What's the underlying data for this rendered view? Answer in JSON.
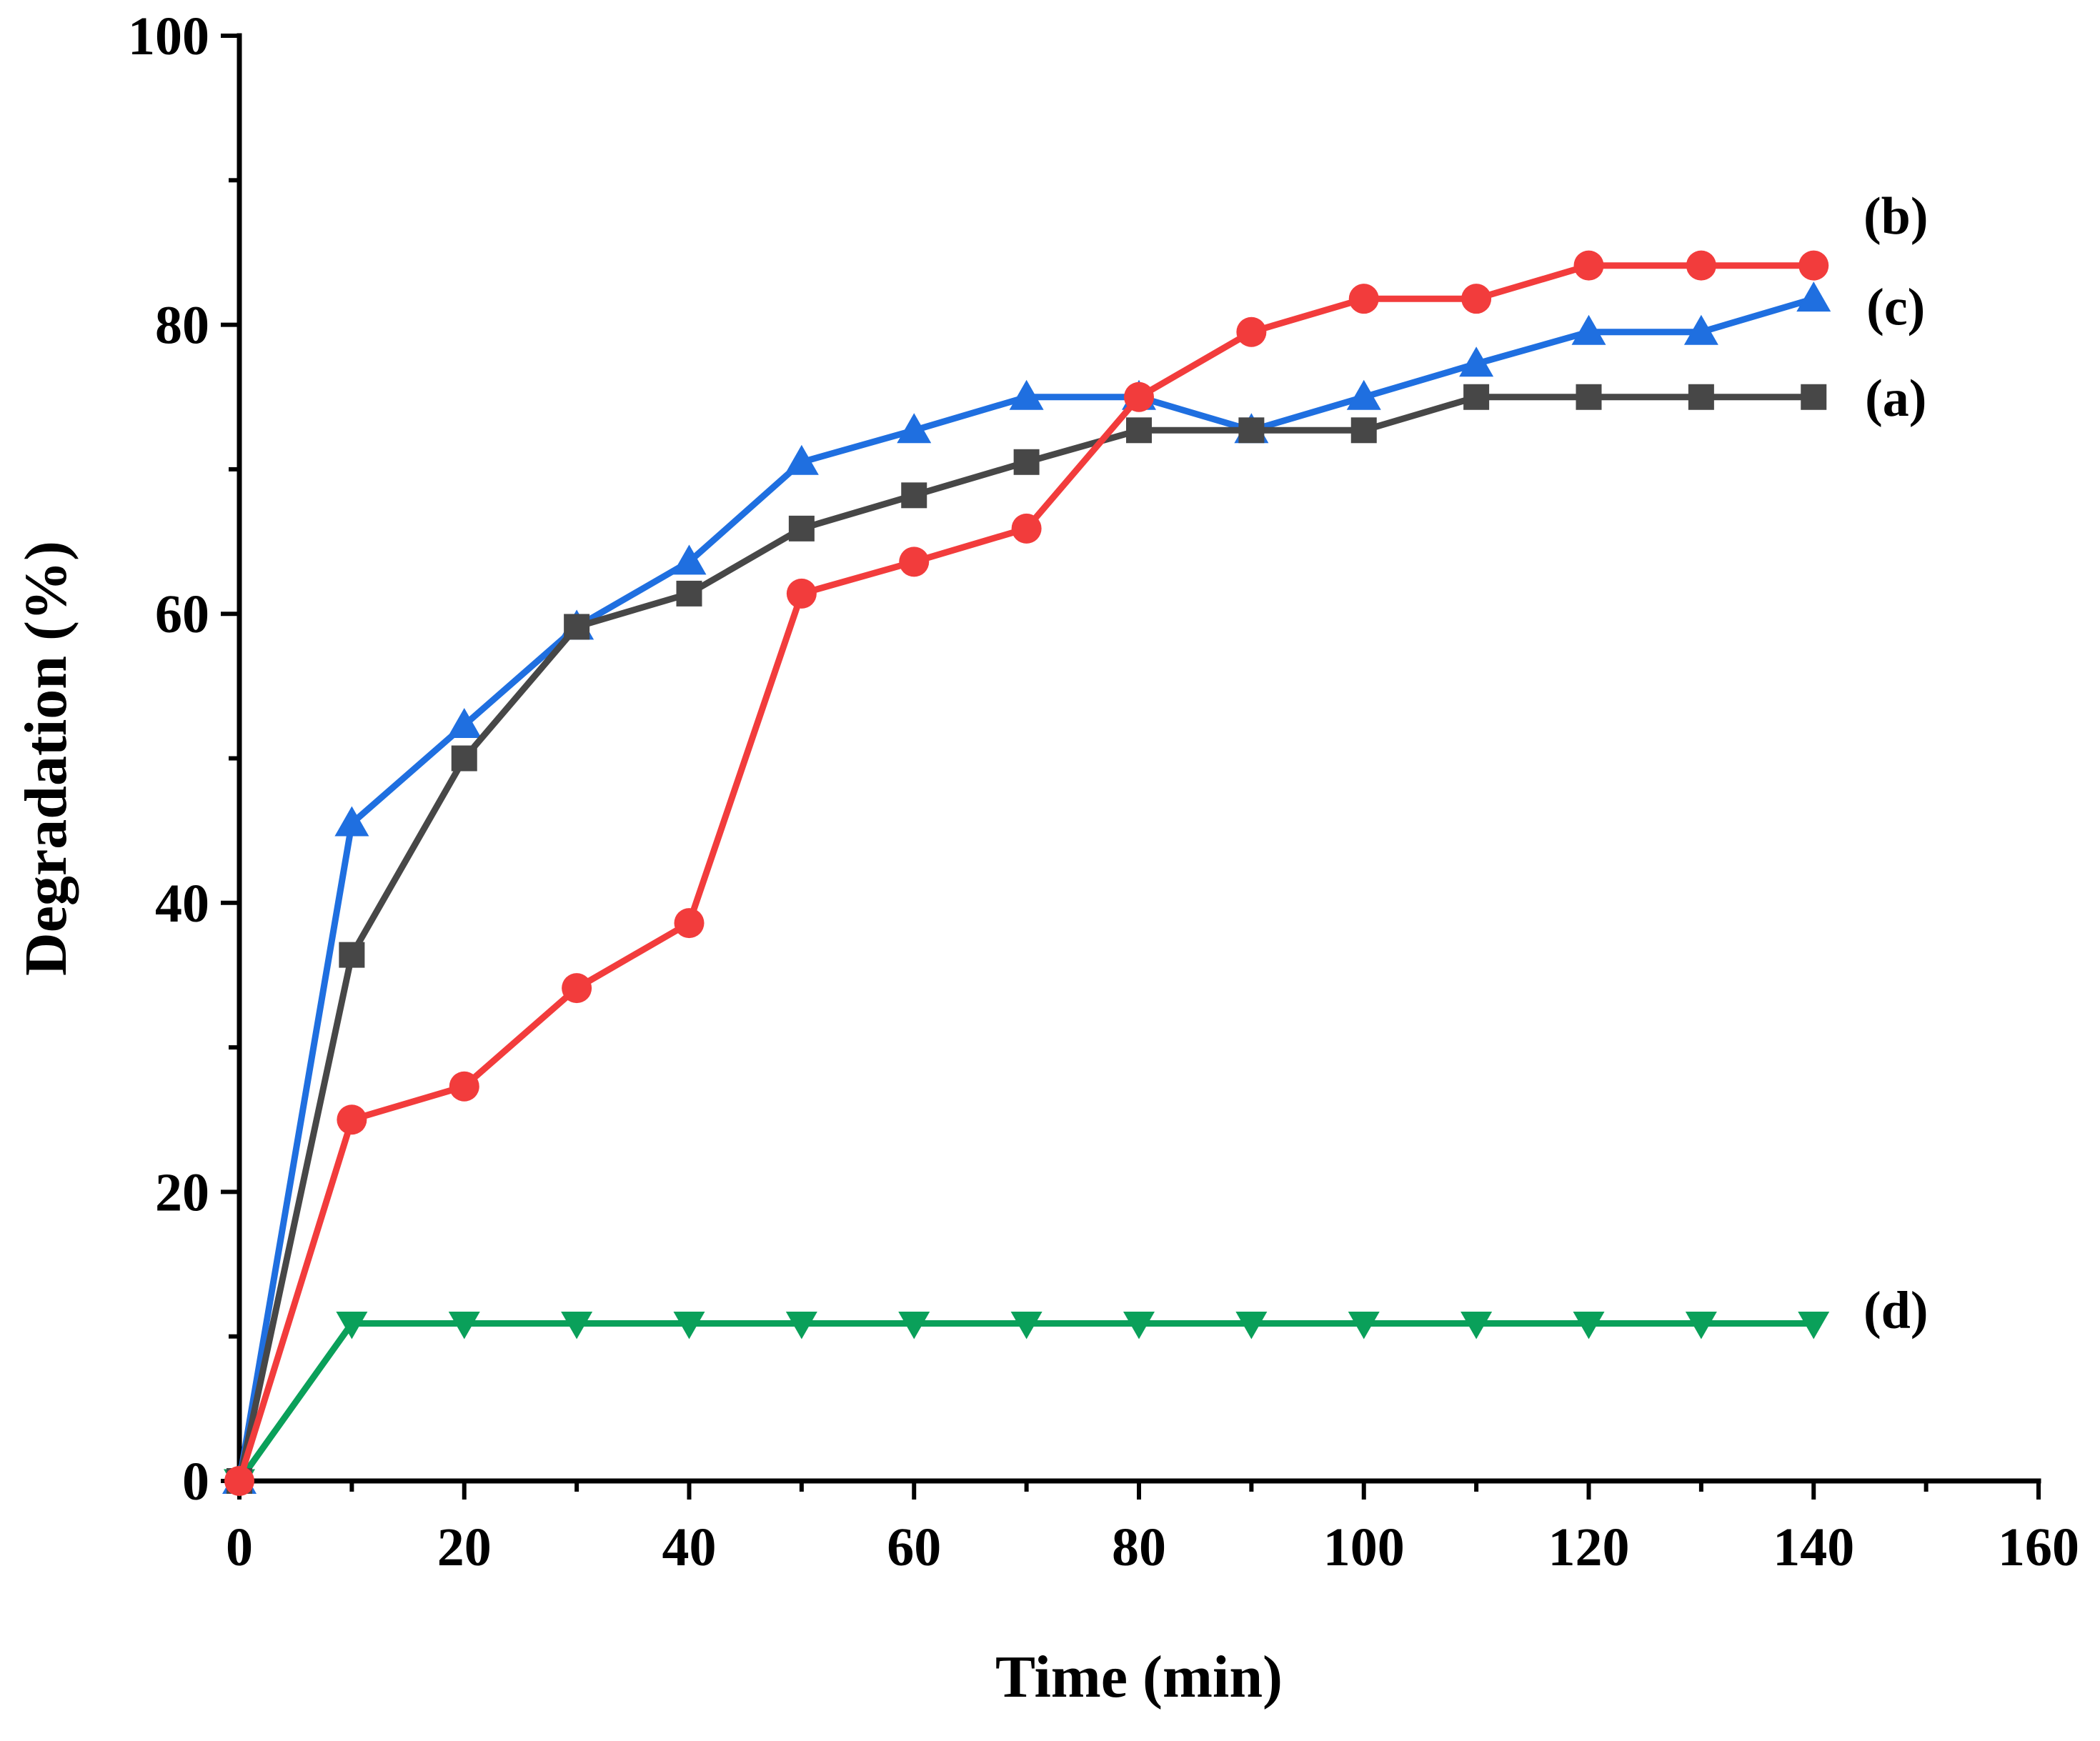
{
  "chart_data": {
    "type": "line",
    "title": "",
    "xlabel": "Time (min)",
    "ylabel": "Degradation (%)",
    "xlim": [
      0,
      160
    ],
    "ylim": [
      0,
      100
    ],
    "xticks": [
      0,
      20,
      40,
      60,
      80,
      100,
      120,
      140,
      160
    ],
    "yticks": [
      0,
      20,
      40,
      60,
      80,
      100
    ],
    "x": [
      0,
      10,
      20,
      30,
      40,
      50,
      60,
      70,
      80,
      90,
      100,
      110,
      120,
      130,
      140
    ],
    "series": [
      {
        "name": "a",
        "label": "(a)",
        "color": "#474747",
        "marker": "square",
        "values": [
          0,
          36.4,
          50.0,
          59.1,
          61.4,
          65.9,
          68.2,
          70.5,
          72.7,
          72.7,
          72.7,
          75.0,
          75.0,
          75.0,
          75.0
        ]
      },
      {
        "name": "b",
        "label": "(b)",
        "color": "#f23c3c",
        "marker": "circle",
        "values": [
          0,
          25.0,
          27.3,
          34.1,
          38.6,
          61.4,
          63.6,
          65.9,
          75.0,
          79.5,
          81.8,
          81.8,
          84.1,
          84.1,
          84.1
        ]
      },
      {
        "name": "c",
        "label": "(c)",
        "color": "#1f6fe0",
        "marker": "triangle-up",
        "values": [
          0,
          45.5,
          52.3,
          59.1,
          63.6,
          70.5,
          72.7,
          75.0,
          75.0,
          72.7,
          75.0,
          77.3,
          79.5,
          79.5,
          81.8
        ]
      },
      {
        "name": "d",
        "label": "(d)",
        "color": "#0aa05a",
        "marker": "triangle-down",
        "values": [
          0,
          10.9,
          10.9,
          10.9,
          10.9,
          10.9,
          10.9,
          10.9,
          10.9,
          10.9,
          10.9,
          10.9,
          10.9,
          10.9,
          10.9
        ]
      }
    ],
    "grid": false,
    "legend": "inline labels at right end of each series"
  }
}
